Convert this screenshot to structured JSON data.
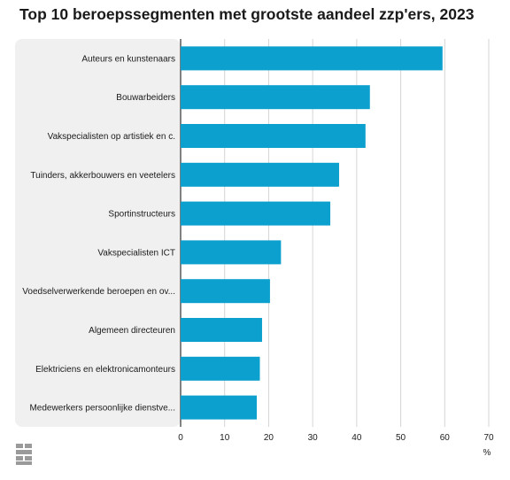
{
  "chart_data": {
    "type": "bar",
    "orientation": "horizontal",
    "title": "Top 10 beroepssegmenten met grootste aandeel zzp'ers, 2023",
    "categories": [
      "Auteurs en kunstenaars",
      "Bouwarbeiders",
      "Vakspecialisten op artistiek en c.",
      "Tuinders, akkerbouwers en veetelers",
      "Sportinstructeurs",
      "Vakspecialisten ICT",
      "Voedselverwerkende beroepen en ov...",
      "Algemeen directeuren",
      "Elektriciens en elektronicamonteurs",
      "Medewerkers persoonlijke dienstve..."
    ],
    "values": [
      59.5,
      43,
      42,
      36,
      34,
      22.8,
      20.3,
      18.5,
      18,
      17.3
    ],
    "xlim": [
      0,
      70
    ],
    "xticks": [
      0,
      10,
      20,
      30,
      40,
      50,
      60,
      70
    ],
    "xunit": "%",
    "grid": true,
    "bar_color": "#0ba0cd",
    "label_panel_color": "#f0f0f0"
  }
}
